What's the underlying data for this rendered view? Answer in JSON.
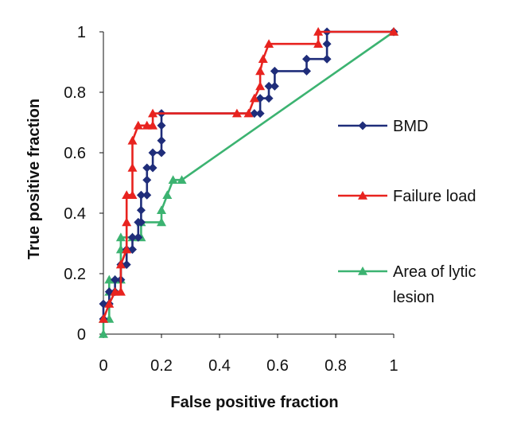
{
  "chart_data": {
    "type": "line",
    "xlabel": "False positive fraction",
    "ylabel": "True positive fraction",
    "xlim": [
      0,
      1
    ],
    "ylim": [
      0,
      1
    ],
    "x_ticks": [
      "0",
      "0.2",
      "0.4",
      "0.6",
      "0.8",
      "1"
    ],
    "y_ticks": [
      "0",
      "0.2",
      "0.4",
      "0.6",
      "0.8",
      "1"
    ],
    "grid": false,
    "legend_position": "right",
    "series": [
      {
        "name": "BMD",
        "color": "#1f2d7a",
        "marker": "diamond",
        "points": [
          [
            0,
            0.05
          ],
          [
            0,
            0.1
          ],
          [
            0.02,
            0.1
          ],
          [
            0.02,
            0.14
          ],
          [
            0.04,
            0.14
          ],
          [
            0.04,
            0.18
          ],
          [
            0.06,
            0.18
          ],
          [
            0.06,
            0.23
          ],
          [
            0.08,
            0.23
          ],
          [
            0.08,
            0.28
          ],
          [
            0.1,
            0.28
          ],
          [
            0.1,
            0.32
          ],
          [
            0.12,
            0.32
          ],
          [
            0.12,
            0.37
          ],
          [
            0.13,
            0.37
          ],
          [
            0.13,
            0.41
          ],
          [
            0.13,
            0.46
          ],
          [
            0.15,
            0.46
          ],
          [
            0.15,
            0.51
          ],
          [
            0.15,
            0.55
          ],
          [
            0.17,
            0.55
          ],
          [
            0.17,
            0.6
          ],
          [
            0.2,
            0.6
          ],
          [
            0.2,
            0.64
          ],
          [
            0.2,
            0.69
          ],
          [
            0.2,
            0.73
          ],
          [
            0.52,
            0.73
          ],
          [
            0.54,
            0.73
          ],
          [
            0.54,
            0.78
          ],
          [
            0.57,
            0.78
          ],
          [
            0.57,
            0.82
          ],
          [
            0.59,
            0.82
          ],
          [
            0.59,
            0.87
          ],
          [
            0.7,
            0.87
          ],
          [
            0.7,
            0.91
          ],
          [
            0.77,
            0.91
          ],
          [
            0.77,
            0.96
          ],
          [
            0.77,
            1.0
          ],
          [
            1.0,
            1.0
          ]
        ]
      },
      {
        "name": "Failure load",
        "color": "#e8231f",
        "marker": "triangle",
        "points": [
          [
            0,
            0.05
          ],
          [
            0.02,
            0.1
          ],
          [
            0.04,
            0.14
          ],
          [
            0.06,
            0.14
          ],
          [
            0.06,
            0.23
          ],
          [
            0.08,
            0.28
          ],
          [
            0.08,
            0.37
          ],
          [
            0.08,
            0.46
          ],
          [
            0.1,
            0.46
          ],
          [
            0.1,
            0.55
          ],
          [
            0.1,
            0.64
          ],
          [
            0.12,
            0.69
          ],
          [
            0.15,
            0.69
          ],
          [
            0.17,
            0.69
          ],
          [
            0.17,
            0.73
          ],
          [
            0.46,
            0.73
          ],
          [
            0.5,
            0.73
          ],
          [
            0.52,
            0.78
          ],
          [
            0.54,
            0.82
          ],
          [
            0.54,
            0.87
          ],
          [
            0.55,
            0.91
          ],
          [
            0.57,
            0.96
          ],
          [
            0.74,
            0.96
          ],
          [
            0.74,
            1.0
          ],
          [
            1.0,
            1.0
          ]
        ]
      },
      {
        "name": "Area of lytic lesion",
        "color": "#3cb371",
        "marker": "triangle",
        "points": [
          [
            0,
            0.0
          ],
          [
            0,
            0.05
          ],
          [
            0.02,
            0.05
          ],
          [
            0.02,
            0.14
          ],
          [
            0.02,
            0.18
          ],
          [
            0.04,
            0.18
          ],
          [
            0.06,
            0.18
          ],
          [
            0.06,
            0.28
          ],
          [
            0.06,
            0.32
          ],
          [
            0.1,
            0.32
          ],
          [
            0.13,
            0.32
          ],
          [
            0.13,
            0.37
          ],
          [
            0.2,
            0.37
          ],
          [
            0.2,
            0.41
          ],
          [
            0.22,
            0.46
          ],
          [
            0.24,
            0.51
          ],
          [
            0.27,
            0.51
          ],
          [
            1.0,
            1.0
          ]
        ]
      }
    ],
    "legend": [
      {
        "label_lines": [
          "BMD"
        ]
      },
      {
        "label_lines": [
          "Failure load"
        ]
      },
      {
        "label_lines": [
          "Area of lytic",
          "lesion"
        ]
      }
    ]
  }
}
